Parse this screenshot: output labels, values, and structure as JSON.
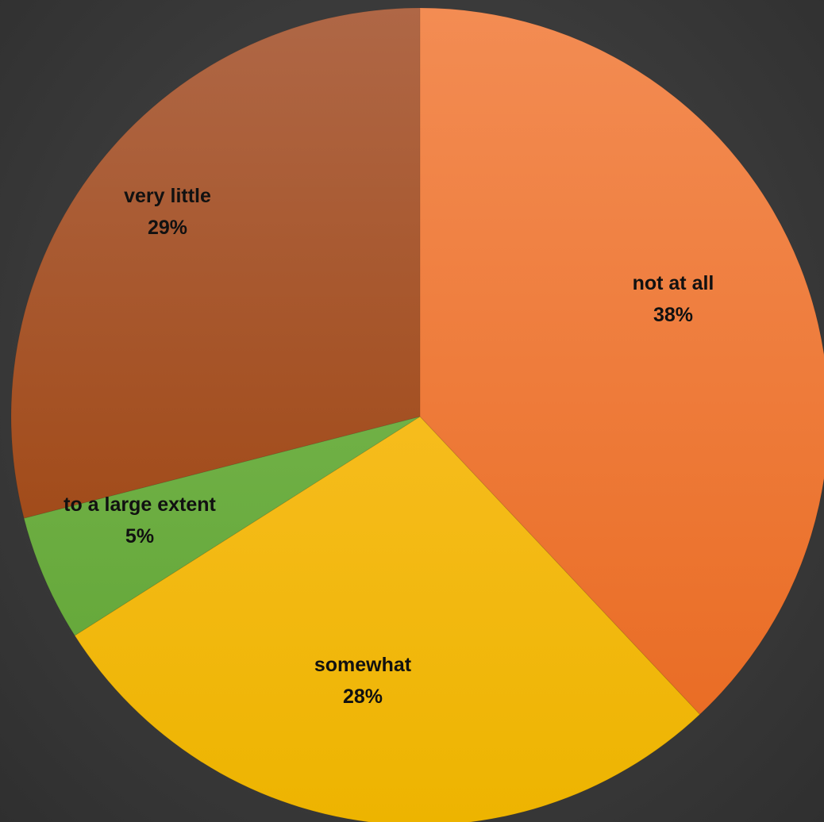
{
  "chart_data": {
    "type": "pie",
    "title": "",
    "start_angle_deg": 0,
    "direction": "clockwise",
    "slices": [
      {
        "label": "not at all",
        "value": 38,
        "value_label": "38%",
        "color_top": "#F38C53",
        "color_bottom": "#E8681E"
      },
      {
        "label": "somewhat",
        "value": 28,
        "value_label": "28%",
        "color_top": "#FFC43A",
        "color_bottom": "#EDB400"
      },
      {
        "label": "to a large extent",
        "value": 5,
        "value_label": "5%",
        "color_top": "#82BF5A",
        "color_bottom": "#5EA232"
      },
      {
        "label": "very little",
        "value": 29,
        "value_label": "29%",
        "color_top": "#AF6746",
        "color_bottom": "#9A3B00"
      }
    ],
    "legend": "none",
    "data_labels": "inside"
  },
  "colors": {
    "background": "#3a3a3a",
    "label_text": "#111111"
  }
}
